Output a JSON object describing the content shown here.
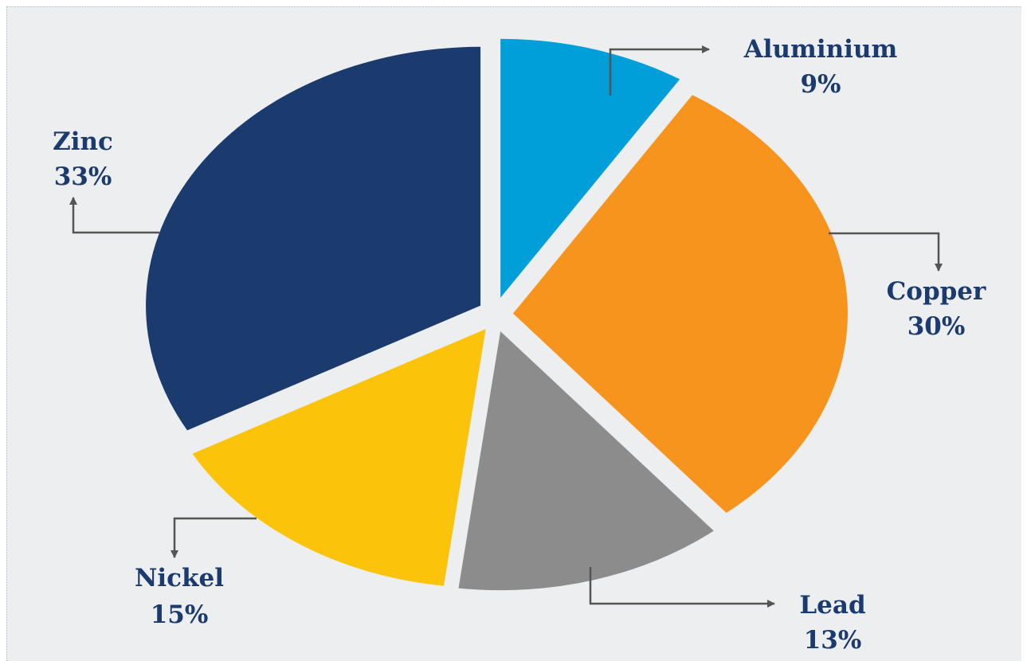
{
  "chart_data": {
    "type": "pie",
    "title": "",
    "slices": [
      {
        "label": "Aluminium",
        "value": 9,
        "value_label": "9%",
        "color": "#009fda"
      },
      {
        "label": "Copper",
        "value": 30,
        "value_label": "30%",
        "color": "#f7941d"
      },
      {
        "label": "Lead",
        "value": 13,
        "value_label": "13%",
        "color": "#8c8c8c"
      },
      {
        "label": "Nickel",
        "value": 15,
        "value_label": "15%",
        "color": "#fcc30b"
      },
      {
        "label": "Zinc",
        "value": 33,
        "value_label": "33%",
        "color": "#1b3a6e"
      }
    ],
    "exploded": true,
    "legend": "none",
    "label_color": "#1b3a6e",
    "leader_color": "#555555"
  }
}
